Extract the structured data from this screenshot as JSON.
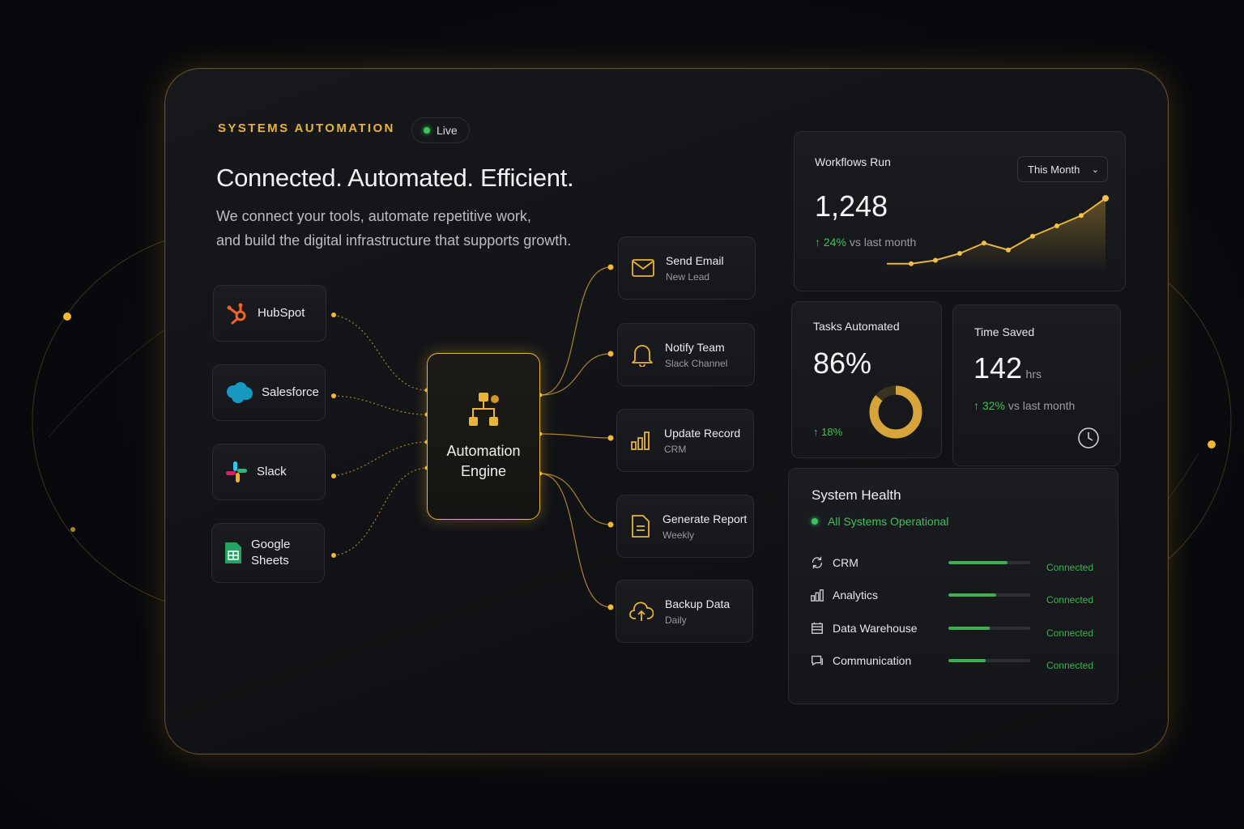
{
  "header": {
    "eyebrow": "SYSTEMS AUTOMATION",
    "live_label": "Live",
    "headline": "Connected. Automated. Efficient.",
    "subtext_line1": "We connect your tools, automate repetitive work,",
    "subtext_line2": "and build the digital infrastructure that supports growth."
  },
  "sources": [
    {
      "label": "HubSpot",
      "icon": "hubspot-icon"
    },
    {
      "label": "Salesforce",
      "icon": "salesforce-icon"
    },
    {
      "label": "Slack",
      "icon": "slack-icon"
    },
    {
      "label_line1": "Google",
      "label_line2": "Sheets",
      "icon": "google-sheets-icon"
    }
  ],
  "engine": {
    "line1": "Automation",
    "line2": "Engine",
    "icon": "hierarchy-icon"
  },
  "actions": [
    {
      "title": "Send Email",
      "sub": "New Lead",
      "icon": "mail-icon"
    },
    {
      "title": "Notify Team",
      "sub": "Slack Channel",
      "icon": "bell-icon"
    },
    {
      "title": "Update Record",
      "sub": "CRM",
      "icon": "bar-chart-icon"
    },
    {
      "title": "Generate Report",
      "sub": "Weekly",
      "icon": "document-icon"
    },
    {
      "title": "Backup Data",
      "sub": "Daily",
      "icon": "cloud-upload-icon"
    }
  ],
  "workflows": {
    "title": "Workflows Run",
    "period": "This Month",
    "value": "1,248",
    "change": "↑ 24%",
    "change_suffix": "vs last month"
  },
  "chart_data": {
    "type": "line",
    "title": "",
    "xlabel": "",
    "ylabel": "",
    "values": [
      0.05,
      0.05,
      0.1,
      0.2,
      0.35,
      0.25,
      0.45,
      0.6,
      0.75,
      1.0
    ],
    "ylim": [
      0,
      1
    ]
  },
  "tasks": {
    "title": "Tasks Automated",
    "value": "86%",
    "change": "↑ 18%",
    "donut_fraction": 0.86
  },
  "time_saved": {
    "title": "Time Saved",
    "value": "142",
    "unit": "hrs",
    "change": "↑ 32%",
    "change_suffix": "vs last month"
  },
  "health": {
    "title": "System Health",
    "status": "All Systems Operational",
    "rows": [
      {
        "name": "CRM",
        "status": "Connected",
        "level": 0.72,
        "icon": "sync-icon"
      },
      {
        "name": "Analytics",
        "status": "Connected",
        "level": 0.58,
        "icon": "analytics-icon"
      },
      {
        "name": "Data Warehouse",
        "status": "Connected",
        "level": 0.5,
        "icon": "database-icon"
      },
      {
        "name": "Communication",
        "status": "Connected",
        "level": 0.45,
        "icon": "chat-icon"
      }
    ]
  },
  "colors": {
    "accent": "#e8b43a",
    "success": "#3fc25a",
    "background": "#07090d"
  }
}
